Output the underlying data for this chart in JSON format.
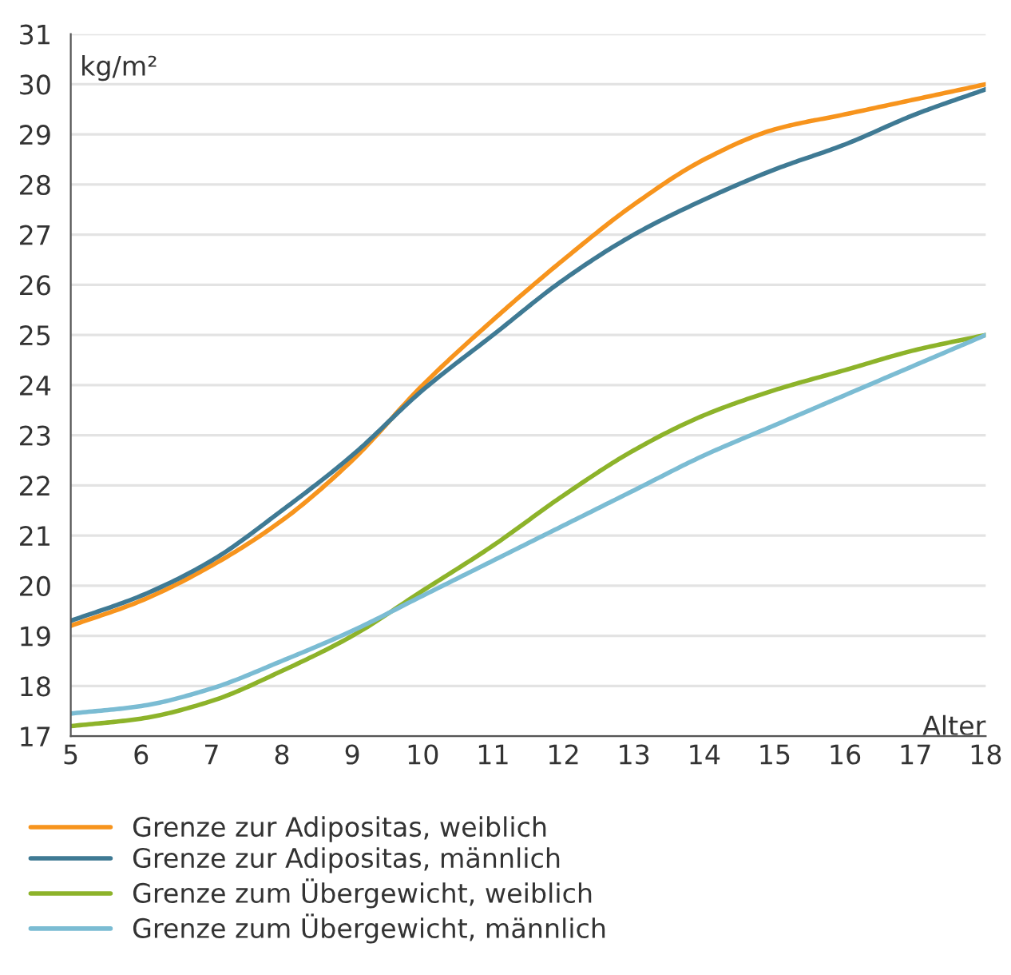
{
  "chart_data": {
    "type": "line",
    "xlabel": "Alter",
    "ylabel": "kg/m²",
    "x": [
      5,
      6,
      7,
      8,
      9,
      10,
      11,
      12,
      13,
      14,
      15,
      16,
      17,
      18
    ],
    "series": [
      {
        "name": "Grenze zur Adipositas, weiblich",
        "color": "#f7941d",
        "values": [
          19.2,
          19.7,
          20.4,
          21.3,
          22.5,
          24.0,
          25.3,
          26.5,
          27.6,
          28.5,
          29.1,
          29.4,
          29.7,
          30.0
        ]
      },
      {
        "name": "Grenze zur Adipositas, männlich",
        "color": "#3f7a94",
        "values": [
          19.3,
          19.8,
          20.5,
          21.5,
          22.6,
          23.9,
          25.0,
          26.1,
          27.0,
          27.7,
          28.3,
          28.8,
          29.4,
          29.9
        ]
      },
      {
        "name": "Grenze zum Übergewicht, weiblich",
        "color": "#8db32a",
        "values": [
          17.2,
          17.35,
          17.7,
          18.3,
          19.0,
          19.9,
          20.8,
          21.8,
          22.7,
          23.4,
          23.9,
          24.3,
          24.7,
          25.0
        ]
      },
      {
        "name": "Grenze zum Übergewicht, männlich",
        "color": "#7bbcd3",
        "values": [
          17.45,
          17.6,
          17.95,
          18.5,
          19.1,
          19.8,
          20.5,
          21.2,
          21.9,
          22.6,
          23.2,
          23.8,
          24.4,
          25.0
        ]
      }
    ],
    "xlim": [
      5,
      18
    ],
    "xticks": [
      5,
      6,
      7,
      8,
      9,
      10,
      11,
      12,
      13,
      14,
      15,
      16,
      17,
      18
    ],
    "ylim": [
      17,
      31
    ],
    "yticks": [
      17,
      18,
      19,
      20,
      21,
      22,
      23,
      24,
      25,
      26,
      27,
      28,
      29,
      30,
      31
    ],
    "grid": "y",
    "legend": "bottom",
    "marker": "none",
    "line_style": "solid"
  }
}
